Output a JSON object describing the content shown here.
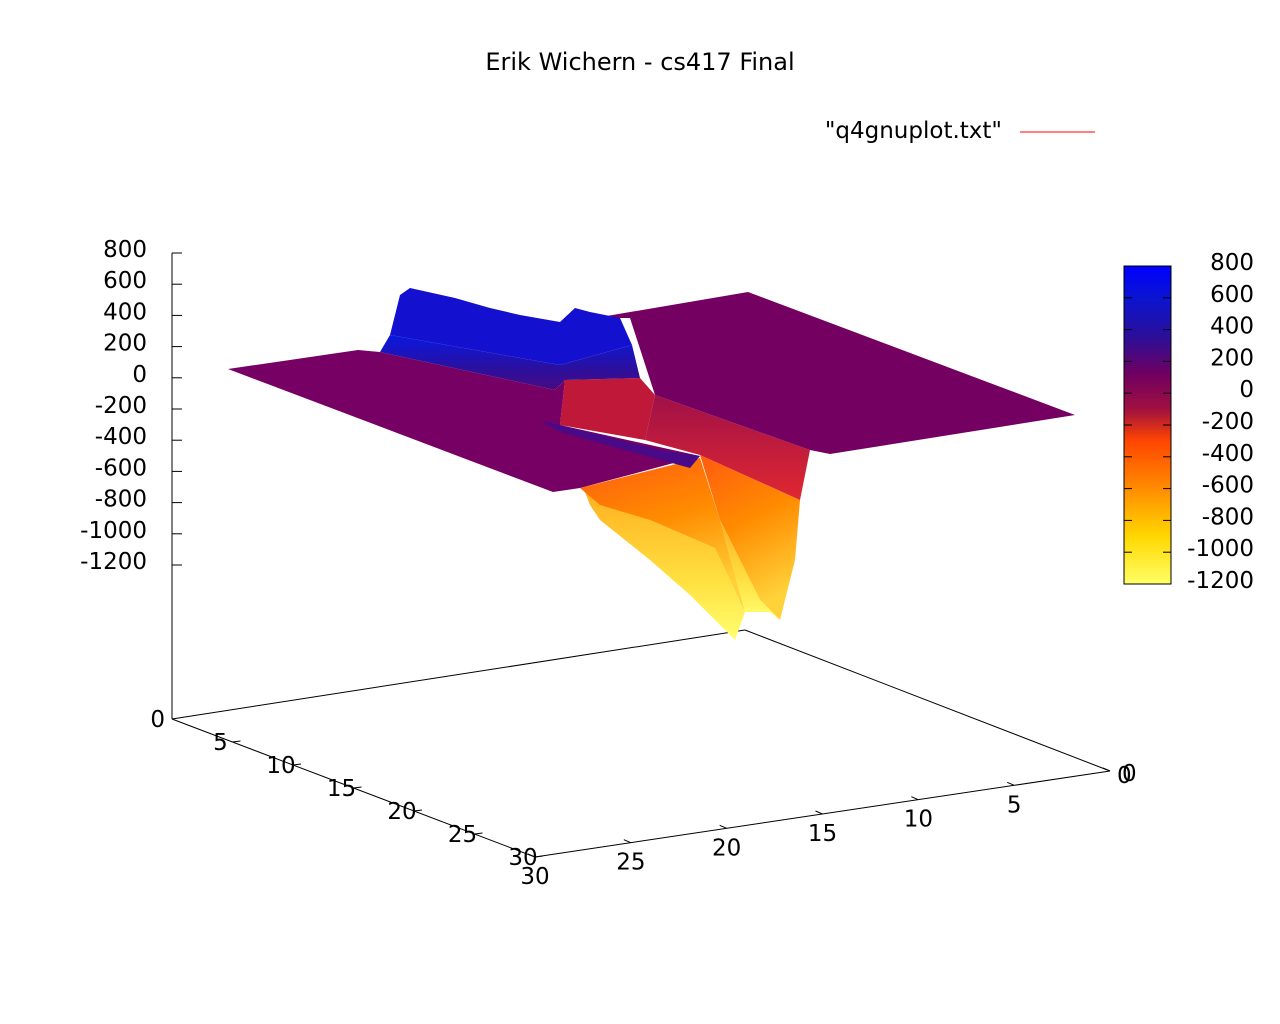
{
  "chart_data": {
    "type": "surface",
    "title": "Erik Wichern - cs417 Final",
    "legend": {
      "entries": [
        {
          "label": "\"q4gnuplot.txt\"",
          "color": "#ff0000"
        }
      ],
      "placement": "top-right"
    },
    "x_ticks": [
      "30",
      "25",
      "20",
      "15",
      "10",
      "5",
      "0"
    ],
    "y_ticks": [
      "5",
      "10",
      "15",
      "20",
      "25",
      "30"
    ],
    "y_origin_label": "0",
    "z_ticks": [
      "800",
      "600",
      "400",
      "200",
      "0",
      "-200",
      "-400",
      "-600",
      "-800",
      "-1000",
      "-1200"
    ],
    "z_base_label": "0",
    "colorbar_ticks": [
      "800",
      "600",
      "400",
      "200",
      "0",
      "-200",
      "-400",
      "-600",
      "-800",
      "-1000",
      "-1200"
    ],
    "z_range": [
      -1200,
      800
    ],
    "palette": [
      "#ffff66",
      "#ffd700",
      "#ff8c00",
      "#ff4500",
      "#a01040",
      "#700060",
      "#2a0f9a",
      "#0a14d0",
      "#0000ff"
    ],
    "grid": false
  }
}
